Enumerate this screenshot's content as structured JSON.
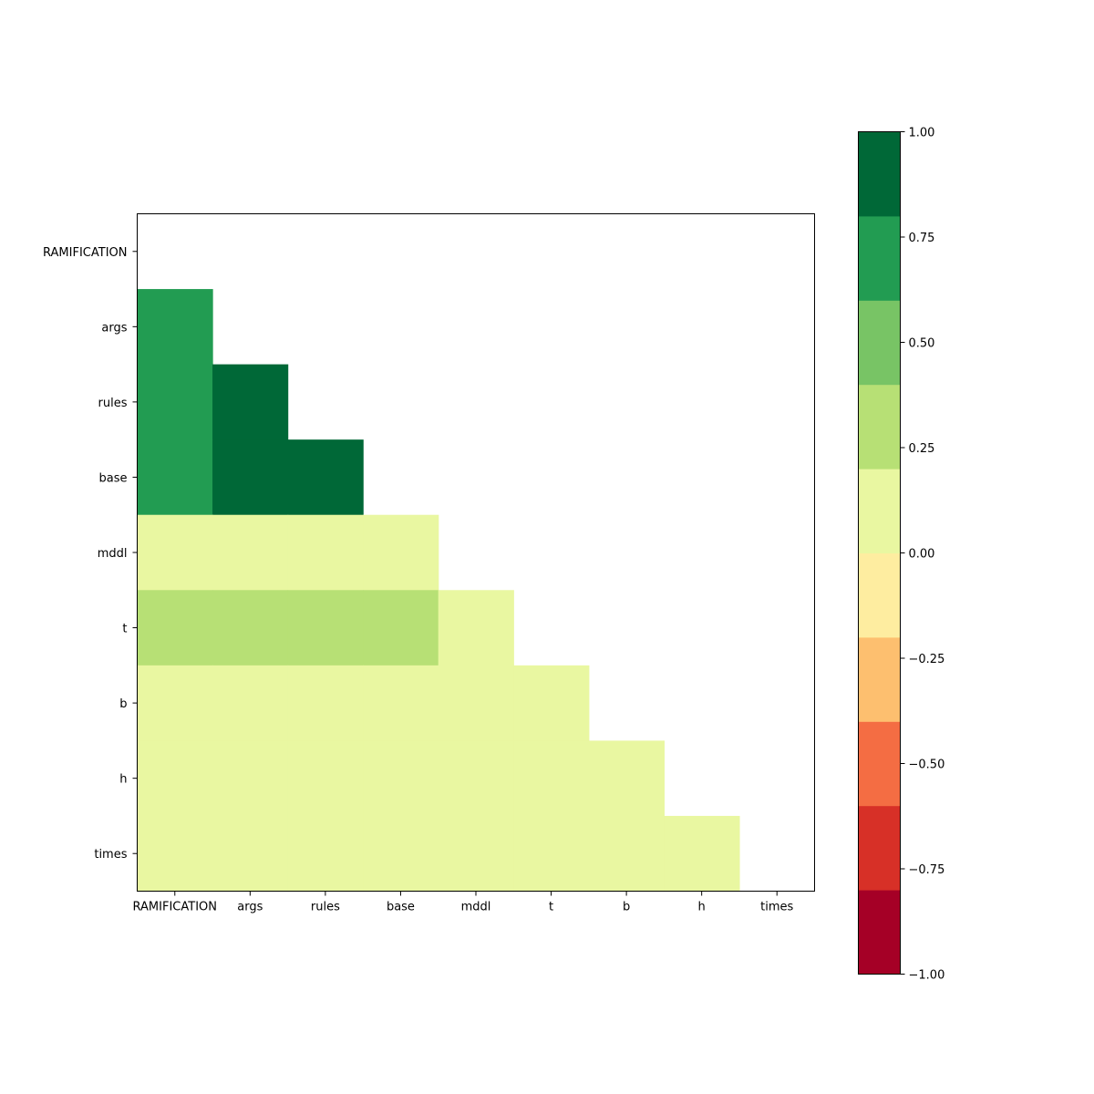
{
  "chart_data": {
    "type": "heatmap",
    "title": "",
    "xlabel": "",
    "ylabel": "",
    "labels": [
      "RAMIFICATION",
      "args",
      "rules",
      "base",
      "mddl",
      "t",
      "b",
      "h",
      "times"
    ],
    "mask": "upper-triangle-including-diagonal",
    "matrix": [
      [
        null,
        null,
        null,
        null,
        null,
        null,
        null,
        null,
        null
      ],
      [
        0.7,
        null,
        null,
        null,
        null,
        null,
        null,
        null,
        null
      ],
      [
        0.7,
        0.9,
        null,
        null,
        null,
        null,
        null,
        null,
        null
      ],
      [
        0.7,
        0.9,
        0.9,
        null,
        null,
        null,
        null,
        null,
        null
      ],
      [
        0.1,
        0.1,
        0.1,
        0.1,
        null,
        null,
        null,
        null,
        null
      ],
      [
        0.3,
        0.3,
        0.3,
        0.3,
        0.1,
        null,
        null,
        null,
        null
      ],
      [
        0.1,
        0.1,
        0.1,
        0.1,
        0.1,
        0.1,
        null,
        null,
        null
      ],
      [
        0.1,
        0.1,
        0.1,
        0.1,
        0.1,
        0.1,
        0.1,
        null,
        null
      ],
      [
        0.1,
        0.1,
        0.1,
        0.1,
        0.1,
        0.1,
        0.1,
        0.1,
        null
      ]
    ],
    "colorbar": {
      "range": [
        -1.0,
        1.0
      ],
      "bins": [
        {
          "from": -1.0,
          "to": -0.8,
          "color": "#a50026"
        },
        {
          "from": -0.8,
          "to": -0.6,
          "color": "#d73027"
        },
        {
          "from": -0.6,
          "to": -0.4,
          "color": "#f46d43"
        },
        {
          "from": -0.4,
          "to": -0.2,
          "color": "#fdbf6f"
        },
        {
          "from": -0.2,
          "to": 0.0,
          "color": "#feeda0"
        },
        {
          "from": 0.0,
          "to": 0.2,
          "color": "#e9f7a1"
        },
        {
          "from": 0.2,
          "to": 0.4,
          "color": "#b7e075"
        },
        {
          "from": 0.4,
          "to": 0.6,
          "color": "#78c465"
        },
        {
          "from": 0.6,
          "to": 0.8,
          "color": "#229c52"
        },
        {
          "from": 0.8,
          "to": 1.0,
          "color": "#006837"
        }
      ],
      "ticks": [
        {
          "value": 1.0,
          "label": "1.00"
        },
        {
          "value": 0.75,
          "label": "0.75"
        },
        {
          "value": 0.5,
          "label": "0.50"
        },
        {
          "value": 0.25,
          "label": "0.25"
        },
        {
          "value": 0.0,
          "label": "0.00"
        },
        {
          "value": -0.25,
          "label": "−0.25"
        },
        {
          "value": -0.5,
          "label": "−0.50"
        },
        {
          "value": -0.75,
          "label": "−0.75"
        },
        {
          "value": -1.0,
          "label": "−1.00"
        }
      ]
    }
  }
}
